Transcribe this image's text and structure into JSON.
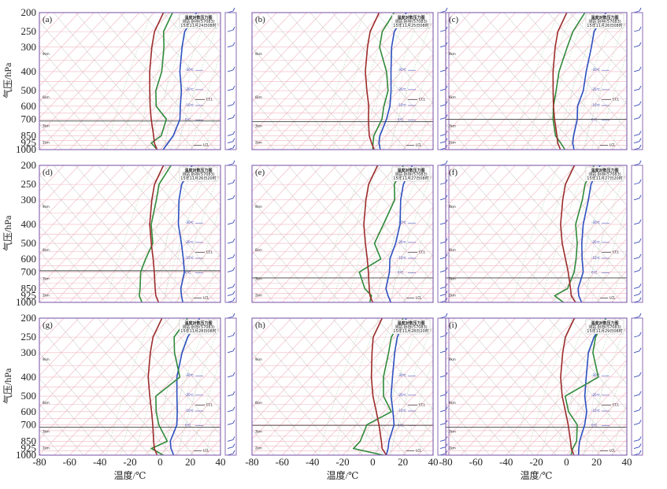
{
  "figure": {
    "y_axis_title": "气压/hPa",
    "x_axis_title": "温度/℃"
  },
  "chart_data": {
    "type": "line",
    "x_ticks": [
      -80,
      -60,
      -40,
      -20,
      0,
      20,
      40
    ],
    "y_ticks": [
      200,
      250,
      300,
      400,
      500,
      600,
      700,
      850,
      925,
      1000
    ],
    "xlim": [
      -80,
      40
    ],
    "ylim": [
      1000,
      200
    ],
    "y_scale": "log-pressure",
    "legend_box": [
      "温度对数压力图",
      "测站:卧呼(57083)",
      "日期时间"
    ],
    "panels": [
      {
        "letter": "(a)",
        "legend_date": "15年11月24日08时",
        "levels": [
          1000,
          925,
          850,
          700,
          600,
          500,
          400,
          300,
          250,
          200
        ],
        "series": [
          {
            "name": "temperature",
            "color": "#2c4fbf",
            "values": [
              2,
              1,
              0,
              -6,
              -14,
              -23,
              -36,
              -50,
              -58,
              -62
            ]
          },
          {
            "name": "dew_point",
            "color": "#2f8a3a",
            "values": [
              -2,
              -10,
              -8,
              -15,
              -30,
              -40,
              -48,
              -62,
              -72,
              -78
            ]
          },
          {
            "name": "parcel_curve",
            "color": "#9c2b2b",
            "values": [
              -2,
              -8,
              -13,
              -25,
              -34,
              -44,
              -56,
              -70,
              -78,
              -84
            ]
          }
        ],
        "lcl_pressure": 715,
        "right_labels": [
          "CCL",
          "LCL"
        ]
      },
      {
        "letter": "(b)",
        "legend_date": "15年11月25日08时",
        "levels": [
          1000,
          925,
          850,
          700,
          600,
          500,
          400,
          300,
          250,
          200
        ],
        "series": [
          {
            "name": "temperature",
            "color": "#2c4fbf",
            "values": [
              5,
              0,
              -4,
              -10,
              -16,
              -25,
              -37,
              -52,
              -60,
              -64
            ]
          },
          {
            "name": "dew_point",
            "color": "#2f8a3a",
            "values": [
              0,
              -4,
              -8,
              -13,
              -20,
              -27,
              -40,
              -60,
              -68,
              -72
            ]
          },
          {
            "name": "parcel_curve",
            "color": "#9c2b2b",
            "values": [
              1,
              -5,
              -11,
              -22,
              -30,
              -41,
              -54,
              -68,
              -76,
              -82
            ]
          }
        ],
        "lcl_pressure": 720,
        "right_labels": [
          "CCL",
          "LCL"
        ]
      },
      {
        "letter": "(c)",
        "legend_date": "15年11月26日08时",
        "levels": [
          1000,
          925,
          850,
          700,
          600,
          500,
          400,
          300,
          250,
          200
        ],
        "series": [
          {
            "name": "temperature",
            "color": "#2c4fbf",
            "values": [
              5,
              0,
              -4,
              -12,
              -20,
              -26,
              -36,
              -48,
              -56,
              -60
            ]
          },
          {
            "name": "dew_point",
            "color": "#2f8a3a",
            "values": [
              -1,
              -8,
              -16,
              -28,
              -36,
              -44,
              -54,
              -64,
              -70,
              -74
            ]
          },
          {
            "name": "parcel_curve",
            "color": "#9c2b2b",
            "values": [
              -4,
              -10,
              -15,
              -27,
              -36,
              -46,
              -58,
              -72,
              -80,
              -86
            ]
          }
        ],
        "lcl_pressure": 700,
        "right_labels": [
          "CCL",
          "LCL"
        ]
      },
      {
        "letter": "(d)",
        "legend_date": "15年11月26日20时",
        "levels": [
          1000,
          925,
          850,
          700,
          600,
          500,
          400,
          300,
          250,
          200
        ],
        "series": [
          {
            "name": "temperature",
            "color": "#2c4fbf",
            "values": [
              15,
              10,
              5,
              -3,
              -12,
              -23,
              -37,
              -52,
              -60,
              -65
            ]
          },
          {
            "name": "dew_point",
            "color": "#2f8a3a",
            "values": [
              -12,
              -18,
              -22,
              -32,
              -37,
              -42,
              -55,
              -67,
              -75,
              -79
            ]
          },
          {
            "name": "parcel_curve",
            "color": "#9c2b2b",
            "values": [
              -1,
              -7,
              -12,
              -23,
              -32,
              -43,
              -56,
              -70,
              -78,
              -84
            ]
          }
        ],
        "lcl_pressure": 690,
        "right_labels": [
          "CCL",
          "LCL"
        ]
      },
      {
        "letter": "(e)",
        "legend_date": "15年11月27日08时",
        "levels": [
          1000,
          925,
          850,
          700,
          600,
          500,
          400,
          300,
          250,
          200
        ],
        "series": [
          {
            "name": "temperature",
            "color": "#2c4fbf",
            "values": [
              12,
              6,
              0,
              -8,
              -16,
              -22,
              -31,
              -46,
              -54,
              -60
            ]
          },
          {
            "name": "dew_point",
            "color": "#2f8a3a",
            "values": [
              -2,
              -5,
              -14,
              -28,
              -22,
              -36,
              -42,
              -50,
              -60,
              -66
            ]
          },
          {
            "name": "parcel_curve",
            "color": "#9c2b2b",
            "values": [
              0,
              -6,
              -11,
              -22,
              -31,
              -42,
              -55,
              -69,
              -77,
              -83
            ]
          }
        ],
        "lcl_pressure": 750,
        "right_labels": [
          "CCL",
          "LCL"
        ]
      },
      {
        "letter": "(f)",
        "legend_date": "15年11月27日20时",
        "levels": [
          1000,
          925,
          850,
          700,
          600,
          500,
          400,
          300,
          250,
          200
        ],
        "series": [
          {
            "name": "temperature",
            "color": "#2c4fbf",
            "values": [
              10,
              4,
              -1,
              -8,
              -17,
              -27,
              -38,
              -50,
              -58,
              -64
            ]
          },
          {
            "name": "dew_point",
            "color": "#2f8a3a",
            "values": [
              -2,
              -12,
              -8,
              -14,
              -21,
              -30,
              -43,
              -54,
              -62,
              -68
            ]
          },
          {
            "name": "parcel_curve",
            "color": "#9c2b2b",
            "values": [
              6,
              -1,
              -6,
              -18,
              -28,
              -40,
              -53,
              -67,
              -75,
              -81
            ]
          }
        ],
        "lcl_pressure": 750,
        "right_labels": [
          "CCL",
          "LCL"
        ]
      },
      {
        "letter": "(g)",
        "legend_date": "15年11月28日08时",
        "levels": [
          1000,
          925,
          850,
          700,
          600,
          500,
          400,
          300,
          250,
          200
        ],
        "series": [
          {
            "name": "temperature",
            "color": "#2c4fbf",
            "values": [
              9,
              3,
              -2,
              -8,
              -16,
              -26,
              -38,
              -50,
              -56,
              -60
            ]
          },
          {
            "name": "dew_point",
            "color": "#2f8a3a",
            "values": [
              2,
              -10,
              -4,
              -20,
              -30,
              -40,
              -36,
              -55,
              -65,
              -68
            ]
          },
          {
            "name": "parcel_curve",
            "color": "#9c2b2b",
            "values": [
              -2,
              -8,
              -13,
              -24,
              -33,
              -44,
              -57,
              -71,
              -79,
              -85
            ]
          }
        ],
        "lcl_pressure": 720,
        "right_labels": [
          "CCL",
          "LCL"
        ]
      },
      {
        "letter": "(h)",
        "legend_date": "15年11月28日20时",
        "levels": [
          1000,
          925,
          850,
          700,
          600,
          500,
          400,
          300,
          250,
          200
        ],
        "series": [
          {
            "name": "temperature",
            "color": "#2c4fbf",
            "values": [
              9,
              6,
              2,
              -5,
              -14,
              -25,
              -36,
              -50,
              -58,
              -64
            ]
          },
          {
            "name": "dew_point",
            "color": "#2f8a3a",
            "values": [
              7,
              -17,
              -17,
              -23,
              -15,
              -30,
              -42,
              -54,
              -62,
              -66
            ]
          },
          {
            "name": "parcel_curve",
            "color": "#9c2b2b",
            "values": [
              9,
              2,
              -3,
              -15,
              -25,
              -37,
              -50,
              -65,
              -74,
              -80
            ]
          }
        ],
        "lcl_pressure": 705,
        "right_labels": [
          "CCL",
          "LCL"
        ]
      },
      {
        "letter": "(i)",
        "legend_date": "15年11月29日08时",
        "levels": [
          1000,
          925,
          850,
          700,
          600,
          500,
          400,
          300,
          250,
          200
        ],
        "series": [
          {
            "name": "temperature",
            "color": "#2c4fbf",
            "values": [
              8,
              4,
              0,
              -7,
              -14,
              -25,
              -36,
              -50,
              -56,
              -60
            ]
          },
          {
            "name": "dew_point",
            "color": "#2f8a3a",
            "values": [
              3,
              0,
              -2,
              -12,
              -26,
              -38,
              -28,
              -47,
              -55,
              -60
            ]
          },
          {
            "name": "parcel_curve",
            "color": "#9c2b2b",
            "values": [
              5,
              -1,
              -6,
              -18,
              -28,
              -40,
              -53,
              -67,
              -75,
              -81
            ]
          }
        ],
        "lcl_pressure": 720,
        "right_labels": [
          "CCL",
          "LCL"
        ]
      }
    ]
  }
}
